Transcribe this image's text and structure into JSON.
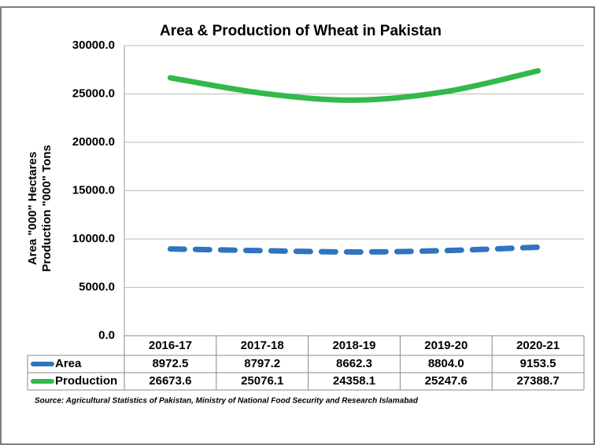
{
  "chart_data": {
    "type": "line",
    "title": "Area & Production of Wheat in Pakistan",
    "y_label": [
      "Area \"000\" Hectares",
      "Production \"000\" Tons"
    ],
    "categories": [
      "2016-17",
      "2017-18",
      "2018-19",
      "2019-20",
      "2020-21"
    ],
    "series": [
      {
        "name": "Area",
        "color": "#2f74c0",
        "dashed": true,
        "values": [
          8972.5,
          8797.2,
          8662.3,
          8804.0,
          9153.5
        ],
        "value_labels": [
          "8972.5",
          "8797.2",
          "8662.3",
          "8804.0",
          "9153.5"
        ]
      },
      {
        "name": "Production",
        "color": "#33b84c",
        "dashed": false,
        "values": [
          26673.6,
          25076.1,
          24358.1,
          25247.6,
          27388.7
        ],
        "value_labels": [
          "26673.6",
          "25076.1",
          "24358.1",
          "25247.6",
          "27388.7"
        ]
      }
    ],
    "ylim": [
      0,
      30000
    ],
    "yticks": [
      {
        "value": 0,
        "label": "0.0"
      },
      {
        "value": 5000,
        "label": "5000.0"
      },
      {
        "value": 10000,
        "label": "10000.0"
      },
      {
        "value": 15000,
        "label": "15000.0"
      },
      {
        "value": 20000,
        "label": "20000.0"
      },
      {
        "value": 25000,
        "label": "25000.0"
      },
      {
        "value": 30000,
        "label": "30000.0"
      }
    ],
    "grid": true,
    "smooth": true,
    "source": "Source: Agricultural Statistics of Pakistan, Ministry of National Food Security and Research Islamabad"
  }
}
